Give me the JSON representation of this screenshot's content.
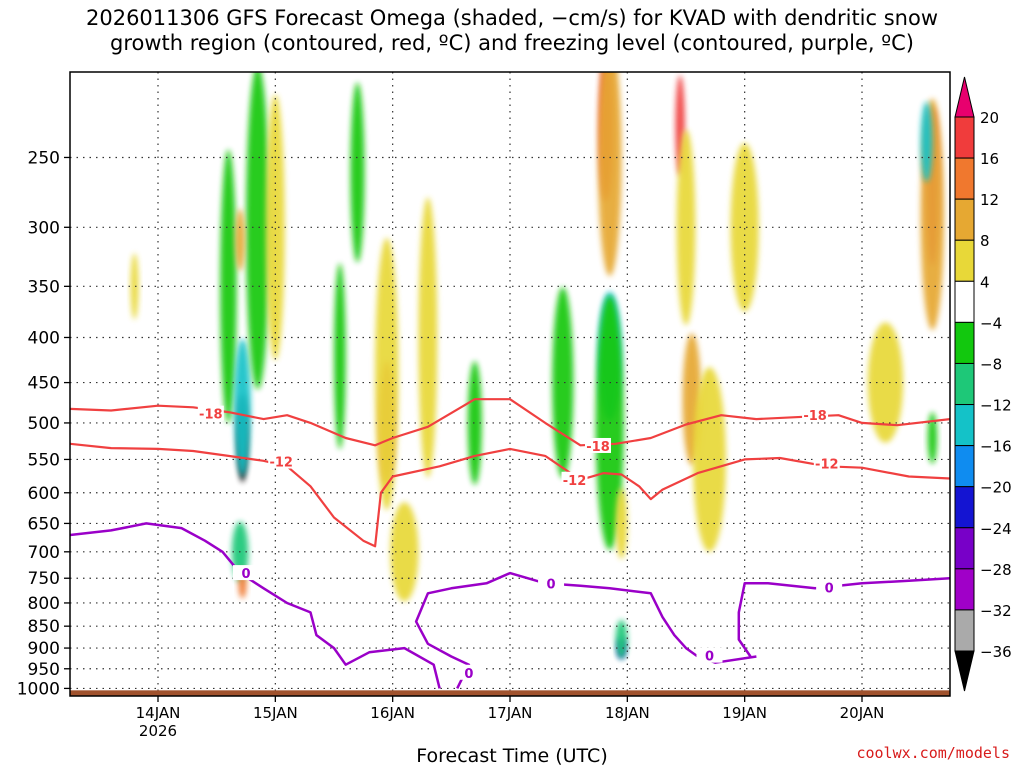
{
  "title": {
    "line1": "2026011306 GFS Forecast Omega (shaded, −cm/s) for KVAD with dendritic snow",
    "line2": "growth region (contoured, red, ºC) and freezing level (contoured, purple, ºC)"
  },
  "credit": "coolwx.com/models",
  "chart_data": {
    "type": "heatmap",
    "title": "2026011306 GFS Forecast Omega (shaded, −cm/s) for KVAD with dendritic snow growth region (contoured, red, ºC) and freezing level (contoured, purple, ºC)",
    "xlabel": "Forecast Time (UTC)",
    "ylabel": "",
    "x_range_days": [
      13.25,
      20.75
    ],
    "y_range_hpa": [
      200,
      1020
    ],
    "y_ticks": [
      "250",
      "300",
      "350",
      "400",
      "450",
      "500",
      "550",
      "600",
      "650",
      "700",
      "750",
      "800",
      "850",
      "900",
      "950",
      "1000"
    ],
    "x_ticks": [
      {
        "day": 14,
        "label": "14JAN",
        "sublabel": "2026"
      },
      {
        "day": 15,
        "label": "15JAN"
      },
      {
        "day": 16,
        "label": "16JAN"
      },
      {
        "day": 17,
        "label": "17JAN"
      },
      {
        "day": 18,
        "label": "18JAN"
      },
      {
        "day": 19,
        "label": "19JAN"
      },
      {
        "day": 20,
        "label": "20JAN"
      }
    ],
    "colorbar": {
      "labels": [
        "20",
        "16",
        "12",
        "8",
        "4",
        "−4",
        "−8",
        "−12",
        "−16",
        "−20",
        "−24",
        "−28",
        "−32",
        "−36"
      ],
      "bins": [
        {
          "lo": 20,
          "hi": 24,
          "color": "#e8006e"
        },
        {
          "lo": 16,
          "hi": 20,
          "color": "#f03c3c"
        },
        {
          "lo": 12,
          "hi": 16,
          "color": "#f0782e"
        },
        {
          "lo": 8,
          "hi": 12,
          "color": "#e6a832"
        },
        {
          "lo": 4,
          "hi": 8,
          "color": "#e8d838"
        },
        {
          "lo": -4,
          "hi": 4,
          "color": "#ffffff"
        },
        {
          "lo": -8,
          "hi": -4,
          "color": "#12c80e"
        },
        {
          "lo": -12,
          "hi": -8,
          "color": "#1ec878"
        },
        {
          "lo": -16,
          "hi": -12,
          "color": "#14c2c8"
        },
        {
          "lo": -20,
          "hi": -16,
          "color": "#0f8cf0"
        },
        {
          "lo": -24,
          "hi": -20,
          "color": "#1414d2"
        },
        {
          "lo": -28,
          "hi": -24,
          "color": "#7800c8"
        },
        {
          "lo": -32,
          "hi": -28,
          "color": "#a000c8"
        },
        {
          "lo": -36,
          "hi": -32,
          "color": "#aaaaaa"
        }
      ],
      "top_arrow_color": "#e8006e",
      "bottom_arrow_color": "#000000"
    },
    "omega_blobs": [
      {
        "day": 14.6,
        "p": 350,
        "dd": 0.07,
        "dp": 240,
        "v": -7
      },
      {
        "day": 14.72,
        "p": 520,
        "dd": 0.045,
        "dp": 120,
        "v": -38
      },
      {
        "day": 14.72,
        "p": 480,
        "dd": 0.07,
        "dp": 170,
        "v": -14
      },
      {
        "day": 14.7,
        "p": 700,
        "dd": 0.07,
        "dp": 110,
        "v": -9
      },
      {
        "day": 14.85,
        "p": 300,
        "dd": 0.1,
        "dp": 240,
        "v": -7
      },
      {
        "day": 14.72,
        "p": 760,
        "dd": 0.035,
        "dp": 60,
        "v": 14
      },
      {
        "day": 14.7,
        "p": 310,
        "dd": 0.04,
        "dp": 50,
        "v": 9
      },
      {
        "day": 15.0,
        "p": 300,
        "dd": 0.08,
        "dp": 200,
        "v": 6
      },
      {
        "day": 15.95,
        "p": 500,
        "dd": 0.06,
        "dp": 160,
        "v": 18
      },
      {
        "day": 15.95,
        "p": 440,
        "dd": 0.1,
        "dp": 300,
        "v": 7
      },
      {
        "day": 16.1,
        "p": 700,
        "dd": 0.12,
        "dp": 180,
        "v": 5
      },
      {
        "day": 15.7,
        "p": 260,
        "dd": 0.06,
        "dp": 120,
        "v": -6
      },
      {
        "day": 16.3,
        "p": 400,
        "dd": 0.08,
        "dp": 280,
        "v": 5
      },
      {
        "day": 15.55,
        "p": 420,
        "dd": 0.05,
        "dp": 200,
        "v": -6
      },
      {
        "day": 17.45,
        "p": 450,
        "dd": 0.09,
        "dp": 220,
        "v": -8
      },
      {
        "day": 17.85,
        "p": 420,
        "dd": 0.1,
        "dp": 140,
        "v": -13
      },
      {
        "day": 17.85,
        "p": 500,
        "dd": 0.12,
        "dp": 320,
        "v": -7
      },
      {
        "day": 17.95,
        "p": 900,
        "dd": 0.035,
        "dp": 50,
        "v": -22
      },
      {
        "day": 17.95,
        "p": 880,
        "dd": 0.05,
        "dp": 90,
        "v": -9
      },
      {
        "day": 17.82,
        "p": 230,
        "dd": 0.06,
        "dp": 90,
        "v": 18
      },
      {
        "day": 17.85,
        "p": 250,
        "dd": 0.1,
        "dp": 150,
        "v": 9
      },
      {
        "day": 17.95,
        "p": 650,
        "dd": 0.05,
        "dp": 120,
        "v": 7
      },
      {
        "day": 18.45,
        "p": 230,
        "dd": 0.04,
        "dp": 60,
        "v": 17
      },
      {
        "day": 18.5,
        "p": 300,
        "dd": 0.08,
        "dp": 150,
        "v": 6
      },
      {
        "day": 18.55,
        "p": 470,
        "dd": 0.08,
        "dp": 160,
        "v": 10
      },
      {
        "day": 18.7,
        "p": 550,
        "dd": 0.14,
        "dp": 260,
        "v": 6
      },
      {
        "day": 19.0,
        "p": 300,
        "dd": 0.12,
        "dp": 130,
        "v": 5
      },
      {
        "day": 20.2,
        "p": 450,
        "dd": 0.15,
        "dp": 140,
        "v": 5
      },
      {
        "day": 20.6,
        "p": 270,
        "dd": 0.05,
        "dp": 110,
        "v": 22
      },
      {
        "day": 20.6,
        "p": 290,
        "dd": 0.1,
        "dp": 170,
        "v": 8
      },
      {
        "day": 20.55,
        "p": 240,
        "dd": 0.05,
        "dp": 50,
        "v": -13
      },
      {
        "day": 20.6,
        "p": 520,
        "dd": 0.04,
        "dp": 70,
        "v": -6
      },
      {
        "day": 13.8,
        "p": 350,
        "dd": 0.03,
        "dp": 60,
        "v": 5
      },
      {
        "day": 16.7,
        "p": 500,
        "dd": 0.06,
        "dp": 160,
        "v": -5
      }
    ],
    "dgz_minus18": {
      "color": "#f04040",
      "points": [
        [
          13.25,
          482
        ],
        [
          13.6,
          484
        ],
        [
          14.0,
          478
        ],
        [
          14.3,
          480
        ],
        [
          14.6,
          486
        ],
        [
          14.9,
          495
        ],
        [
          15.1,
          490
        ],
        [
          15.3,
          500
        ],
        [
          15.6,
          520
        ],
        [
          15.85,
          530
        ],
        [
          16.0,
          520
        ],
        [
          16.3,
          505
        ],
        [
          16.7,
          470
        ],
        [
          17.0,
          470
        ],
        [
          17.3,
          500
        ],
        [
          17.6,
          530
        ],
        [
          17.9,
          528
        ],
        [
          18.2,
          520
        ],
        [
          18.5,
          502
        ],
        [
          18.8,
          490
        ],
        [
          19.1,
          495
        ],
        [
          19.5,
          492
        ],
        [
          19.8,
          490
        ],
        [
          20.0,
          500
        ],
        [
          20.3,
          503
        ],
        [
          20.75,
          495
        ]
      ],
      "labels": [
        {
          "day": 14.45,
          "p": 488,
          "text": "-18"
        },
        {
          "day": 17.75,
          "p": 531,
          "text": "-18"
        },
        {
          "day": 19.6,
          "p": 490,
          "text": "-18"
        }
      ]
    },
    "dgz_minus12": {
      "color": "#f04040",
      "points": [
        [
          13.25,
          528
        ],
        [
          13.6,
          534
        ],
        [
          14.0,
          535
        ],
        [
          14.3,
          538
        ],
        [
          14.6,
          545
        ],
        [
          14.9,
          552
        ],
        [
          15.1,
          560
        ],
        [
          15.3,
          590
        ],
        [
          15.5,
          640
        ],
        [
          15.75,
          680
        ],
        [
          15.85,
          690
        ],
        [
          15.9,
          600
        ],
        [
          16.0,
          575
        ],
        [
          16.4,
          560
        ],
        [
          16.7,
          545
        ],
        [
          17.0,
          535
        ],
        [
          17.3,
          545
        ],
        [
          17.6,
          580
        ],
        [
          17.8,
          570
        ],
        [
          17.95,
          572
        ],
        [
          18.1,
          590
        ],
        [
          18.2,
          610
        ],
        [
          18.3,
          595
        ],
        [
          18.6,
          570
        ],
        [
          19.0,
          550
        ],
        [
          19.3,
          548
        ],
        [
          19.7,
          560
        ],
        [
          20.0,
          562
        ],
        [
          20.4,
          575
        ],
        [
          20.75,
          578
        ]
      ],
      "labels": [
        {
          "day": 15.05,
          "p": 553,
          "text": "-12"
        },
        {
          "day": 17.55,
          "p": 580,
          "text": "-12"
        },
        {
          "day": 19.7,
          "p": 556,
          "text": "-12"
        }
      ]
    },
    "freezing_level": {
      "color": "#9a00c8",
      "points": [
        [
          13.25,
          670
        ],
        [
          13.6,
          662
        ],
        [
          13.9,
          650
        ],
        [
          14.2,
          658
        ],
        [
          14.4,
          680
        ],
        [
          14.55,
          700
        ],
        [
          14.7,
          740
        ],
        [
          14.9,
          770
        ],
        [
          15.1,
          800
        ],
        [
          15.3,
          820
        ],
        [
          15.35,
          870
        ],
        [
          15.5,
          900
        ],
        [
          15.6,
          940
        ],
        [
          15.8,
          910
        ],
        [
          16.1,
          900
        ],
        [
          16.35,
          940
        ],
        [
          16.4,
          1000
        ]
      ],
      "points2": [
        [
          16.55,
          1000
        ],
        [
          16.65,
          940
        ],
        [
          16.5,
          920
        ],
        [
          16.3,
          890
        ],
        [
          16.2,
          840
        ],
        [
          16.3,
          780
        ],
        [
          16.5,
          770
        ],
        [
          16.8,
          760
        ],
        [
          17.0,
          740
        ],
        [
          17.3,
          760
        ],
        [
          17.6,
          765
        ],
        [
          17.85,
          770
        ],
        [
          18.2,
          780
        ],
        [
          18.3,
          830
        ],
        [
          18.4,
          870
        ],
        [
          18.5,
          900
        ],
        [
          18.6,
          920
        ],
        [
          18.75,
          935
        ],
        [
          19.1,
          920
        ]
      ],
      "points3": [
        [
          19.05,
          920
        ],
        [
          18.95,
          880
        ],
        [
          18.95,
          820
        ],
        [
          19.0,
          760
        ],
        [
          19.2,
          760
        ],
        [
          19.6,
          770
        ],
        [
          20.0,
          760
        ],
        [
          20.4,
          755
        ],
        [
          20.75,
          750
        ]
      ],
      "labels": [
        {
          "day": 14.75,
          "p": 740,
          "text": "0"
        },
        {
          "day": 16.65,
          "p": 960,
          "text": "0"
        },
        {
          "day": 17.35,
          "p": 760,
          "text": "0"
        },
        {
          "day": 18.7,
          "p": 918,
          "text": "0"
        },
        {
          "day": 19.72,
          "p": 768,
          "text": "0"
        }
      ]
    },
    "terrain_pressure_hpa": 1005,
    "terrain_color": "#a0522d"
  }
}
